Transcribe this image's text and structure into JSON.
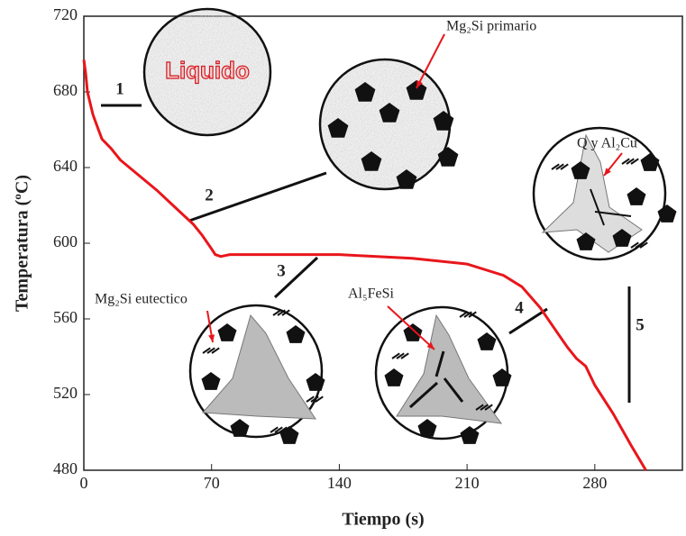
{
  "chart_data": {
    "type": "line",
    "xlabel": "Tiempo (s)",
    "ylabel": "Temperatura (ºC)",
    "x": [
      0,
      1,
      2,
      5,
      8,
      10,
      12,
      15,
      20,
      30,
      40,
      50,
      60,
      65,
      70,
      72,
      75,
      80,
      100,
      140,
      180,
      210,
      230,
      240,
      250,
      260,
      265,
      270,
      275,
      280,
      290,
      300,
      308
    ],
    "values": [
      697,
      690,
      680,
      668,
      660,
      655,
      653,
      650,
      644,
      636,
      628,
      619,
      610,
      604,
      597,
      594,
      593,
      594,
      594,
      594,
      592,
      589,
      583,
      577,
      566,
      552,
      545,
      539,
      535,
      525,
      510,
      493,
      480
    ],
    "color": "#e8161b",
    "xlim": [
      0,
      328
    ],
    "ylim": [
      480,
      720
    ],
    "xticks": [
      0,
      70,
      140,
      210,
      280
    ],
    "yticks": [
      480,
      520,
      560,
      600,
      640,
      680,
      720
    ],
    "annotations": [
      "1",
      "2",
      "3",
      "4",
      "5",
      "Liquido",
      "Mg₂Si primario",
      "Q y Al₂Cu",
      "Mg₂Si eutectico",
      "Al₅FeSi"
    ]
  }
}
